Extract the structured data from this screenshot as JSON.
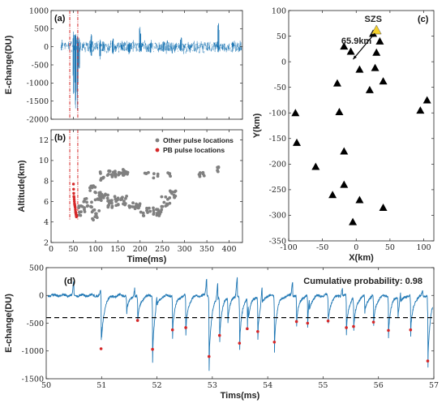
{
  "chart_data": [
    {
      "panel": "(a)",
      "type": "line",
      "ylabel": "E-change(DU)",
      "xlim": [
        0,
        430
      ],
      "ylim": [
        -2000,
        1000
      ],
      "yticks": [
        -2000,
        -1500,
        -1000,
        -500,
        0,
        500,
        1000
      ],
      "x_ticks_labeled": false,
      "series_color": "#1f77b4",
      "window_markers_ms": [
        42,
        60
      ],
      "window_color": "#d62728",
      "events": [
        {
          "x": 50,
          "min": -1300,
          "max": 420
        },
        {
          "x": 55,
          "min": -1700,
          "max": 350
        },
        {
          "x": 59,
          "min": -1750,
          "max": 300
        },
        {
          "x": 63,
          "min": -600,
          "max": 250
        },
        {
          "x": 90,
          "min": -250,
          "max": 350
        },
        {
          "x": 110,
          "min": -350,
          "max": 200
        },
        {
          "x": 118,
          "min": -120,
          "max": 150
        },
        {
          "x": 139,
          "min": -200,
          "max": 230
        },
        {
          "x": 175,
          "min": -210,
          "max": 120
        },
        {
          "x": 200,
          "min": -150,
          "max": 550
        },
        {
          "x": 224,
          "min": -170,
          "max": 100
        },
        {
          "x": 252,
          "min": -140,
          "max": 150
        },
        {
          "x": 292,
          "min": -100,
          "max": 260
        },
        {
          "x": 376,
          "min": -150,
          "max": 650
        }
      ]
    },
    {
      "panel": "(b)",
      "type": "scatter",
      "xlabel": "Time(ms)",
      "ylabel": "Altitude(km)",
      "xlim": [
        0,
        430
      ],
      "ylim": [
        2,
        13
      ],
      "xticks": [
        0,
        50,
        100,
        150,
        200,
        250,
        300,
        350,
        400
      ],
      "yticks": [
        2,
        4,
        6,
        8,
        10,
        12
      ],
      "legend_position": "top-right",
      "window_markers_ms": [
        42,
        60
      ],
      "series": [
        {
          "name": "Other pulse locations",
          "color": "#808080",
          "clusters": [
            {
              "x": [
                62,
                68
              ],
              "y": [
                4.6,
                5.6
              ],
              "n": 8
            },
            {
              "x": [
                68,
                80
              ],
              "y": [
                4.8,
                6.3
              ],
              "n": 8
            },
            {
              "x": [
                78,
                92
              ],
              "y": [
                5.4,
                6.2
              ],
              "n": 7
            },
            {
              "x": [
                90,
                112
              ],
              "y": [
                4.0,
                5.2
              ],
              "n": 12
            },
            {
              "x": [
                85,
                105
              ],
              "y": [
                6.3,
                7.6
              ],
              "n": 9
            },
            {
              "x": [
                98,
                110
              ],
              "y": [
                5.9,
                6.9
              ],
              "n": 6
            },
            {
              "x": [
                108,
                128
              ],
              "y": [
                6.0,
                7.1
              ],
              "n": 12
            },
            {
              "x": [
                110,
                120
              ],
              "y": [
                8.0,
                8.9
              ],
              "n": 8
            },
            {
              "x": [
                125,
                145
              ],
              "y": [
                5.4,
                6.1
              ],
              "n": 12
            },
            {
              "x": [
                125,
                145
              ],
              "y": [
                8.4,
                9.0
              ],
              "n": 14
            },
            {
              "x": [
                140,
                170
              ],
              "y": [
                5.6,
                6.6
              ],
              "n": 18
            },
            {
              "x": [
                150,
                175
              ],
              "y": [
                8.5,
                9.2
              ],
              "n": 18
            },
            {
              "x": [
                172,
                200
              ],
              "y": [
                5.3,
                5.9
              ],
              "n": 14
            },
            {
              "x": [
                200,
                250
              ],
              "y": [
                4.6,
                5.4
              ],
              "n": 26
            },
            {
              "x": [
                245,
                268
              ],
              "y": [
                5.4,
                6.6
              ],
              "n": 12
            },
            {
              "x": [
                262,
                282
              ],
              "y": [
                6.2,
                7.1
              ],
              "n": 10
            },
            {
              "x": [
                205,
                222
              ],
              "y": [
                8.7,
                9.0
              ],
              "n": 4
            },
            {
              "x": [
                230,
                240
              ],
              "y": [
                8.3,
                8.9
              ],
              "n": 4
            },
            {
              "x": [
                262,
                270
              ],
              "y": [
                8.4,
                8.9
              ],
              "n": 4
            },
            {
              "x": [
                318,
                345
              ],
              "y": [
                8.4,
                8.9
              ],
              "n": 7
            },
            {
              "x": [
                372,
                380
              ],
              "y": [
                8.9,
                9.5
              ],
              "n": 5
            }
          ]
        },
        {
          "name": "PB pulse locations",
          "color": "#d62728",
          "x": [
            50.3,
            50.6,
            50.9,
            51.2,
            51.6,
            51.9,
            52.3,
            52.7,
            53.0,
            53.4,
            53.8,
            54.2,
            54.6,
            55.0,
            55.4,
            55.8,
            56.2,
            56.6,
            56.9
          ],
          "y": [
            7.7,
            7.2,
            6.8,
            6.5,
            6.4,
            6.2,
            6.0,
            5.8,
            5.7,
            5.6,
            5.5,
            5.4,
            5.2,
            5.0,
            4.9,
            4.8,
            4.7,
            4.6,
            4.5
          ]
        }
      ]
    },
    {
      "panel": "(c)",
      "type": "scatter",
      "xlabel": "X(km)",
      "ylabel": "Y(km)",
      "xlim": [
        -100,
        115
      ],
      "ylim": [
        -350,
        100
      ],
      "xticks": [
        -100,
        -50,
        0,
        50,
        100
      ],
      "yticks": [
        -350,
        -300,
        -250,
        -200,
        -150,
        -100,
        -50,
        0,
        50,
        100
      ],
      "stations": {
        "marker": "triangle",
        "color": "#000000",
        "x": [
          -18,
          25,
          35,
          -8,
          30,
          28,
          5,
          40,
          -28,
          -25,
          20,
          -90,
          -88,
          95,
          105,
          -18,
          -60,
          -18,
          5,
          -35,
          40,
          -5
        ],
        "y": [
          30,
          55,
          40,
          20,
          18,
          -12,
          -15,
          -38,
          -42,
          -98,
          -55,
          -100,
          -158,
          -95,
          -75,
          -175,
          -205,
          -240,
          -270,
          -260,
          -285,
          -313
        ]
      },
      "reference": {
        "name": "SZS",
        "x": 30,
        "y": 62,
        "color": "#f5d02b"
      },
      "distance_annotation": {
        "text": "65.9km",
        "from": [
          30,
          62
        ],
        "to": [
          -7,
          0
        ]
      }
    },
    {
      "panel": "(d)",
      "type": "line",
      "xlabel": "Tims(ms)",
      "ylabel": "E-change(DU)",
      "xlim": [
        50,
        57
      ],
      "ylim": [
        -1500,
        500
      ],
      "xticks": [
        50,
        51,
        52,
        53,
        54,
        55,
        56,
        57
      ],
      "yticks": [
        -1500,
        -1000,
        -500,
        0,
        500
      ],
      "series_color": "#1f77b4",
      "threshold": -400,
      "threshold_style": "dashed",
      "annotation": "Cumulative probability:   0.98",
      "marked_pulses": {
        "color": "#d62728",
        "x": [
          50.99,
          51.65,
          51.92,
          52.28,
          52.52,
          52.94,
          53.13,
          53.49,
          53.63,
          53.82,
          54.12,
          54.52,
          54.72,
          55.09,
          55.42,
          55.55,
          55.91,
          56.18,
          56.58,
          56.89
        ],
        "y": [
          -960,
          -450,
          -970,
          -620,
          -580,
          -1100,
          -720,
          -860,
          -600,
          -650,
          -840,
          -470,
          -500,
          -460,
          -580,
          -560,
          -480,
          -630,
          -620,
          -1180
        ]
      },
      "unmarked_dips": [
        {
          "x": 51.45,
          "y": -290
        },
        {
          "x": 53.28,
          "y": -360
        },
        {
          "x": 55.75,
          "y": -300
        },
        {
          "x": 56.35,
          "y": -330
        }
      ],
      "rises": [
        {
          "x": 50.5,
          "y": 260
        },
        {
          "x": 51.0,
          "y": 290
        },
        {
          "x": 51.6,
          "y": 150
        },
        {
          "x": 52.0,
          "y": 160
        },
        {
          "x": 52.9,
          "y": 300
        },
        {
          "x": 53.1,
          "y": 280
        },
        {
          "x": 53.45,
          "y": 340
        },
        {
          "x": 53.65,
          "y": 250
        },
        {
          "x": 53.9,
          "y": 270
        },
        {
          "x": 54.45,
          "y": 240
        },
        {
          "x": 54.75,
          "y": 180
        },
        {
          "x": 55.35,
          "y": 150
        },
        {
          "x": 56.4,
          "y": 160
        },
        {
          "x": 56.8,
          "y": 100
        }
      ]
    }
  ]
}
